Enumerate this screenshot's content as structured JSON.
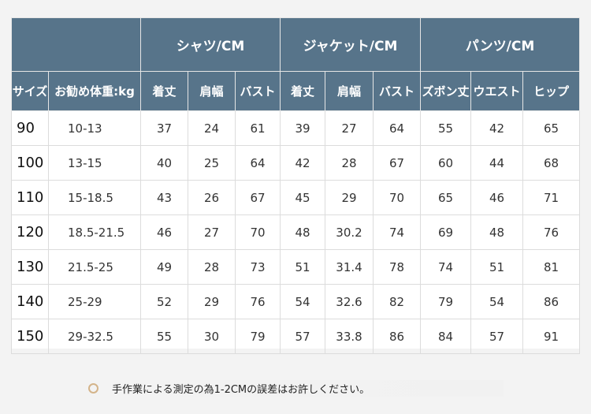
{
  "groups": [
    {
      "label": "シャツ/CM"
    },
    {
      "label": "ジャケット/CM"
    },
    {
      "label": "パンツ/CM"
    }
  ],
  "columns": [
    "サイズ",
    "お勧め体重:kg",
    "着丈",
    "肩幅",
    "バスト",
    "着丈",
    "肩幅",
    "バスト",
    "ズボン丈",
    "ウエスト",
    "ヒップ"
  ],
  "rows": [
    [
      "90",
      "10-13",
      "37",
      "24",
      "61",
      "39",
      "27",
      "64",
      "55",
      "42",
      "65"
    ],
    [
      "100",
      "13-15",
      "40",
      "25",
      "64",
      "42",
      "28",
      "67",
      "60",
      "44",
      "68"
    ],
    [
      "110",
      "15-18.5",
      "43",
      "26",
      "67",
      "45",
      "29",
      "70",
      "65",
      "46",
      "71"
    ],
    [
      "120",
      "18.5-21.5",
      "46",
      "27",
      "70",
      "48",
      "30.2",
      "74",
      "69",
      "48",
      "76"
    ],
    [
      "130",
      "21.5-25",
      "49",
      "28",
      "73",
      "51",
      "31.4",
      "78",
      "74",
      "51",
      "81"
    ],
    [
      "140",
      "25-29",
      "52",
      "29",
      "76",
      "54",
      "32.6",
      "82",
      "79",
      "54",
      "86"
    ],
    [
      "150",
      "29-32.5",
      "55",
      "30",
      "79",
      "57",
      "33.8",
      "86",
      "84",
      "57",
      "91"
    ]
  ],
  "note": {
    "text": "手作業による測定の為1-2CMの誤差はお許しください。",
    "icon": "circle-bullet-icon"
  },
  "colors": {
    "header_bg": "#57748a",
    "bullet": "#d4b48a"
  }
}
